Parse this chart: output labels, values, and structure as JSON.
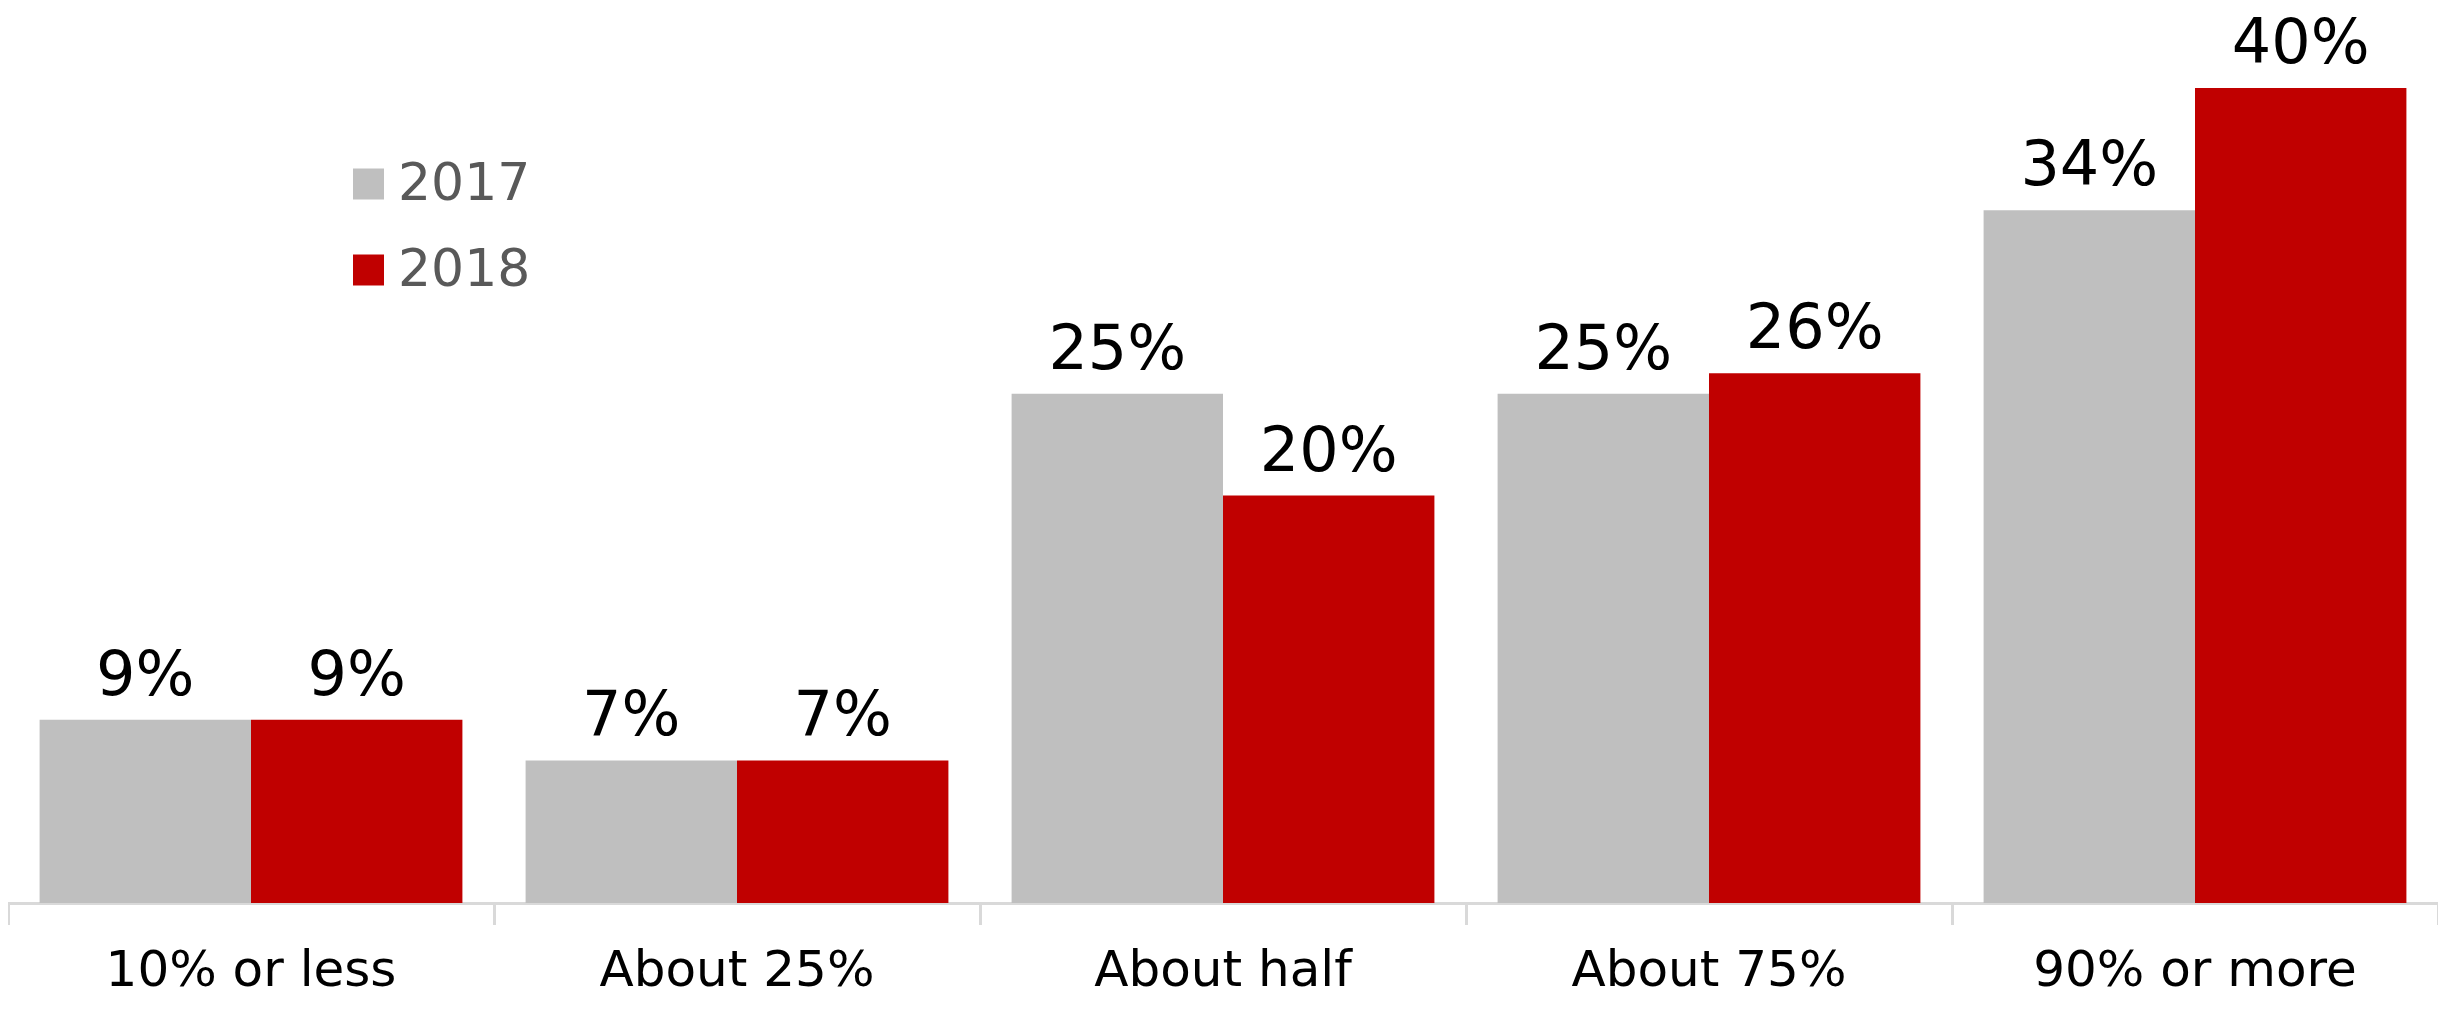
{
  "chart_data": {
    "type": "bar",
    "categories": [
      "10% or less",
      "About 25%",
      "About half",
      "About 75%",
      "90% or more"
    ],
    "series": [
      {
        "name": "2017",
        "color": "#bfbfbf",
        "values": [
          9,
          7,
          25,
          25,
          34
        ],
        "value_labels": [
          "9%",
          "7%",
          "25%",
          "25%",
          "34%"
        ]
      },
      {
        "name": "2018",
        "color": "#c00000",
        "values": [
          9,
          7,
          20,
          26,
          40
        ],
        "value_labels": [
          "9%",
          "7%",
          "20%",
          "26%",
          "40%"
        ]
      }
    ],
    "legend": "top left",
    "grid": false,
    "tick_labels": "x"
  }
}
